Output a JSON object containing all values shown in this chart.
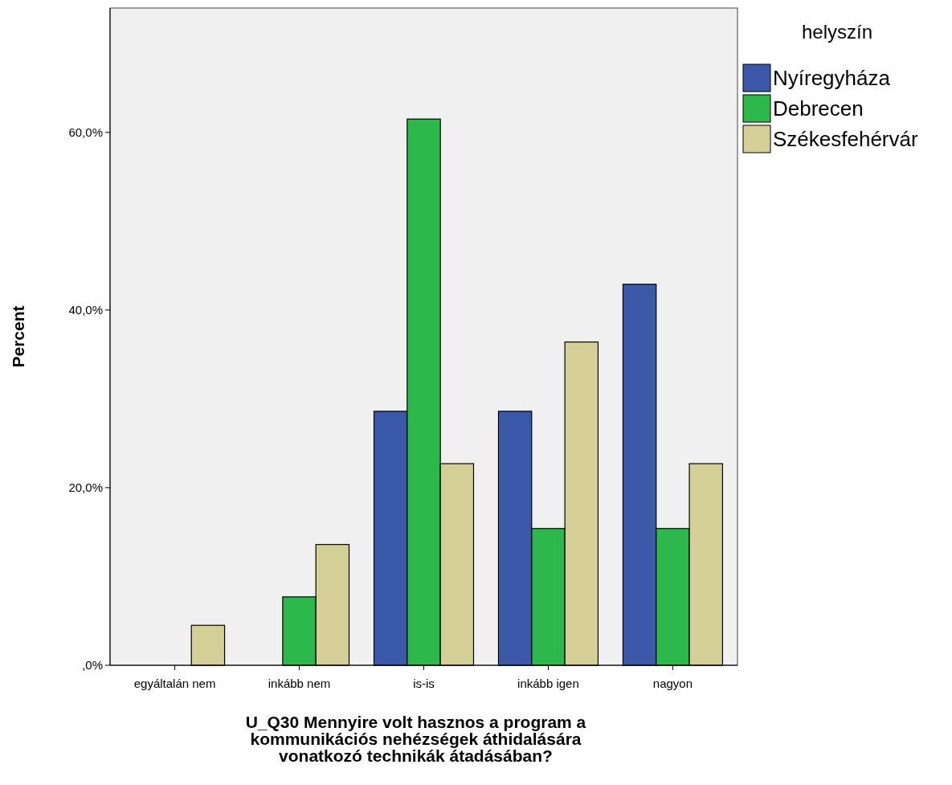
{
  "chart_data": {
    "type": "bar",
    "xlabel": "U_Q30 Mennyire volt hasznos a program a kommunikációs nehézségek áthidalására vonatkozó technikák átadásában?",
    "ylabel": "Percent",
    "legend_title": "helyszín",
    "categories": [
      "egyáltalán nem",
      "inkább nem",
      "is-is",
      "inkább igen",
      "nagyon"
    ],
    "series": [
      {
        "name": "Nyíregyháza",
        "color": "#3c58a8",
        "values": [
          0,
          0,
          28.6,
          28.6,
          42.9
        ]
      },
      {
        "name": "Debrecen",
        "color": "#2db84b",
        "values": [
          0,
          7.7,
          61.5,
          15.4,
          15.4
        ]
      },
      {
        "name": "Székesfehérvár",
        "color": "#d4cf97",
        "values": [
          4.5,
          13.6,
          22.7,
          36.4,
          22.7
        ]
      }
    ],
    "ylim": [
      0,
      74
    ],
    "yticks": [
      {
        "value": 0,
        "label": ",0%"
      },
      {
        "value": 20,
        "label": "20,0%"
      },
      {
        "value": 40,
        "label": "40,0%"
      },
      {
        "value": 60,
        "label": "60,0%"
      }
    ],
    "legend": "right",
    "grid": false
  }
}
